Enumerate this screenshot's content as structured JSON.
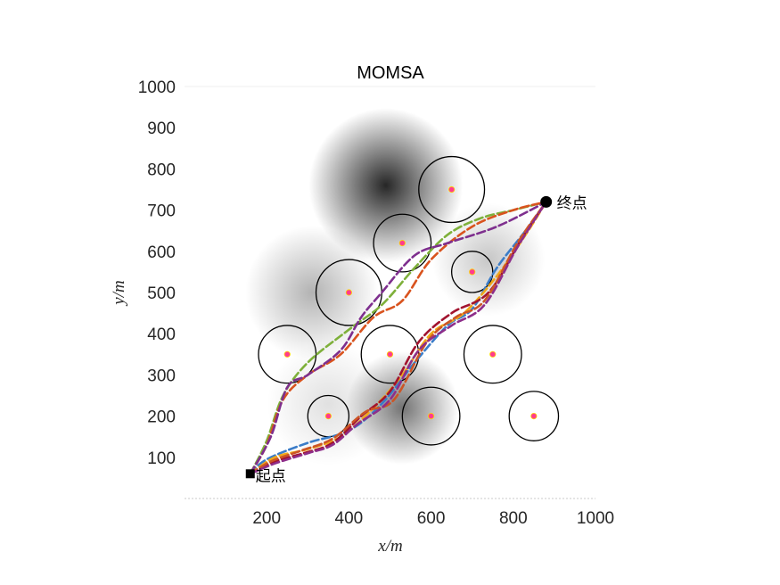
{
  "chart_data": {
    "type": "line",
    "title": "MOMSA",
    "xlabel": "x/m",
    "ylabel": "y/m",
    "xlim": [
      0,
      1000
    ],
    "ylim": [
      0,
      1000
    ],
    "xticks": [
      200,
      400,
      600,
      800,
      1000
    ],
    "yticks": [
      100,
      200,
      300,
      400,
      500,
      600,
      700,
      800,
      900,
      1000
    ],
    "grid": false,
    "background": "grayscale terrain threat field",
    "start": {
      "label": "起点",
      "x": 160,
      "y": 60
    },
    "end": {
      "label": "终点",
      "x": 880,
      "y": 720
    },
    "obstacles": [
      {
        "x": 250,
        "y": 350,
        "r": 70
      },
      {
        "x": 350,
        "y": 200,
        "r": 50
      },
      {
        "x": 400,
        "y": 500,
        "r": 80
      },
      {
        "x": 500,
        "y": 350,
        "r": 70
      },
      {
        "x": 530,
        "y": 620,
        "r": 70
      },
      {
        "x": 600,
        "y": 200,
        "r": 70
      },
      {
        "x": 650,
        "y": 750,
        "r": 80
      },
      {
        "x": 700,
        "y": 550,
        "r": 50
      },
      {
        "x": 750,
        "y": 350,
        "r": 70
      },
      {
        "x": 850,
        "y": 200,
        "r": 60
      }
    ],
    "threats": [
      {
        "x": 490,
        "y": 760,
        "r": 150,
        "intensity": 0.85
      },
      {
        "x": 530,
        "y": 220,
        "r": 110,
        "intensity": 0.55
      },
      {
        "x": 310,
        "y": 500,
        "r": 130,
        "intensity": 0.3
      },
      {
        "x": 740,
        "y": 580,
        "r": 110,
        "intensity": 0.22
      },
      {
        "x": 350,
        "y": 230,
        "r": 120,
        "intensity": 0.12
      }
    ],
    "colors": {
      "obstacle_outline": "#000000",
      "obstacle_center": "#ff3b8e",
      "obstacle_center_ring": "#ffd400",
      "start_marker": "#000000",
      "end_marker": "#000000"
    },
    "series": [
      {
        "color": "#3a7cc8",
        "style": "dashed",
        "x": [
          160,
          200,
          300,
          400,
          480,
          560,
          640,
          700,
          760,
          830,
          880
        ],
        "y": [
          60,
          95,
          135,
          165,
          230,
          330,
          420,
          460,
          560,
          650,
          720
        ]
      },
      {
        "color": "#7eb03a",
        "style": "dashed",
        "x": [
          160,
          200,
          240,
          300,
          400,
          480,
          560,
          640,
          720,
          800,
          880
        ],
        "y": [
          60,
          140,
          250,
          330,
          410,
          470,
          560,
          640,
          680,
          700,
          720
        ]
      },
      {
        "color": "#d9531e",
        "style": "dashed",
        "x": [
          160,
          200,
          240,
          300,
          380,
          460,
          530,
          600,
          700,
          800,
          880
        ],
        "y": [
          60,
          130,
          240,
          300,
          350,
          440,
          480,
          580,
          660,
          700,
          720
        ]
      },
      {
        "color": "#7e2f8e",
        "style": "dashed",
        "x": [
          160,
          210,
          250,
          300,
          380,
          430,
          480,
          560,
          640,
          760,
          880
        ],
        "y": [
          60,
          150,
          270,
          300,
          360,
          440,
          500,
          590,
          620,
          660,
          720
        ]
      },
      {
        "color": "#f0a81a",
        "style": "dashed",
        "x": [
          160,
          220,
          300,
          380,
          460,
          530,
          600,
          680,
          760,
          830,
          880
        ],
        "y": [
          60,
          100,
          120,
          150,
          220,
          300,
          400,
          450,
          540,
          640,
          720
        ]
      },
      {
        "color": "#a2142f",
        "style": "dashed",
        "x": [
          160,
          220,
          290,
          360,
          430,
          500,
          570,
          650,
          740,
          820,
          880
        ],
        "y": [
          60,
          90,
          110,
          135,
          200,
          260,
          380,
          450,
          500,
          630,
          720
        ]
      },
      {
        "color": "#cc5525",
        "style": "dashed",
        "x": [
          160,
          210,
          280,
          360,
          440,
          510,
          590,
          660,
          730,
          810,
          880
        ],
        "y": [
          60,
          90,
          115,
          145,
          210,
          240,
          380,
          440,
          480,
          620,
          720
        ]
      },
      {
        "color": "#8e2e8a",
        "style": "dashed",
        "x": [
          160,
          220,
          300,
          360,
          420,
          500,
          570,
          650,
          730,
          810,
          880
        ],
        "y": [
          60,
          85,
          110,
          130,
          180,
          240,
          360,
          420,
          470,
          610,
          720
        ]
      }
    ]
  }
}
